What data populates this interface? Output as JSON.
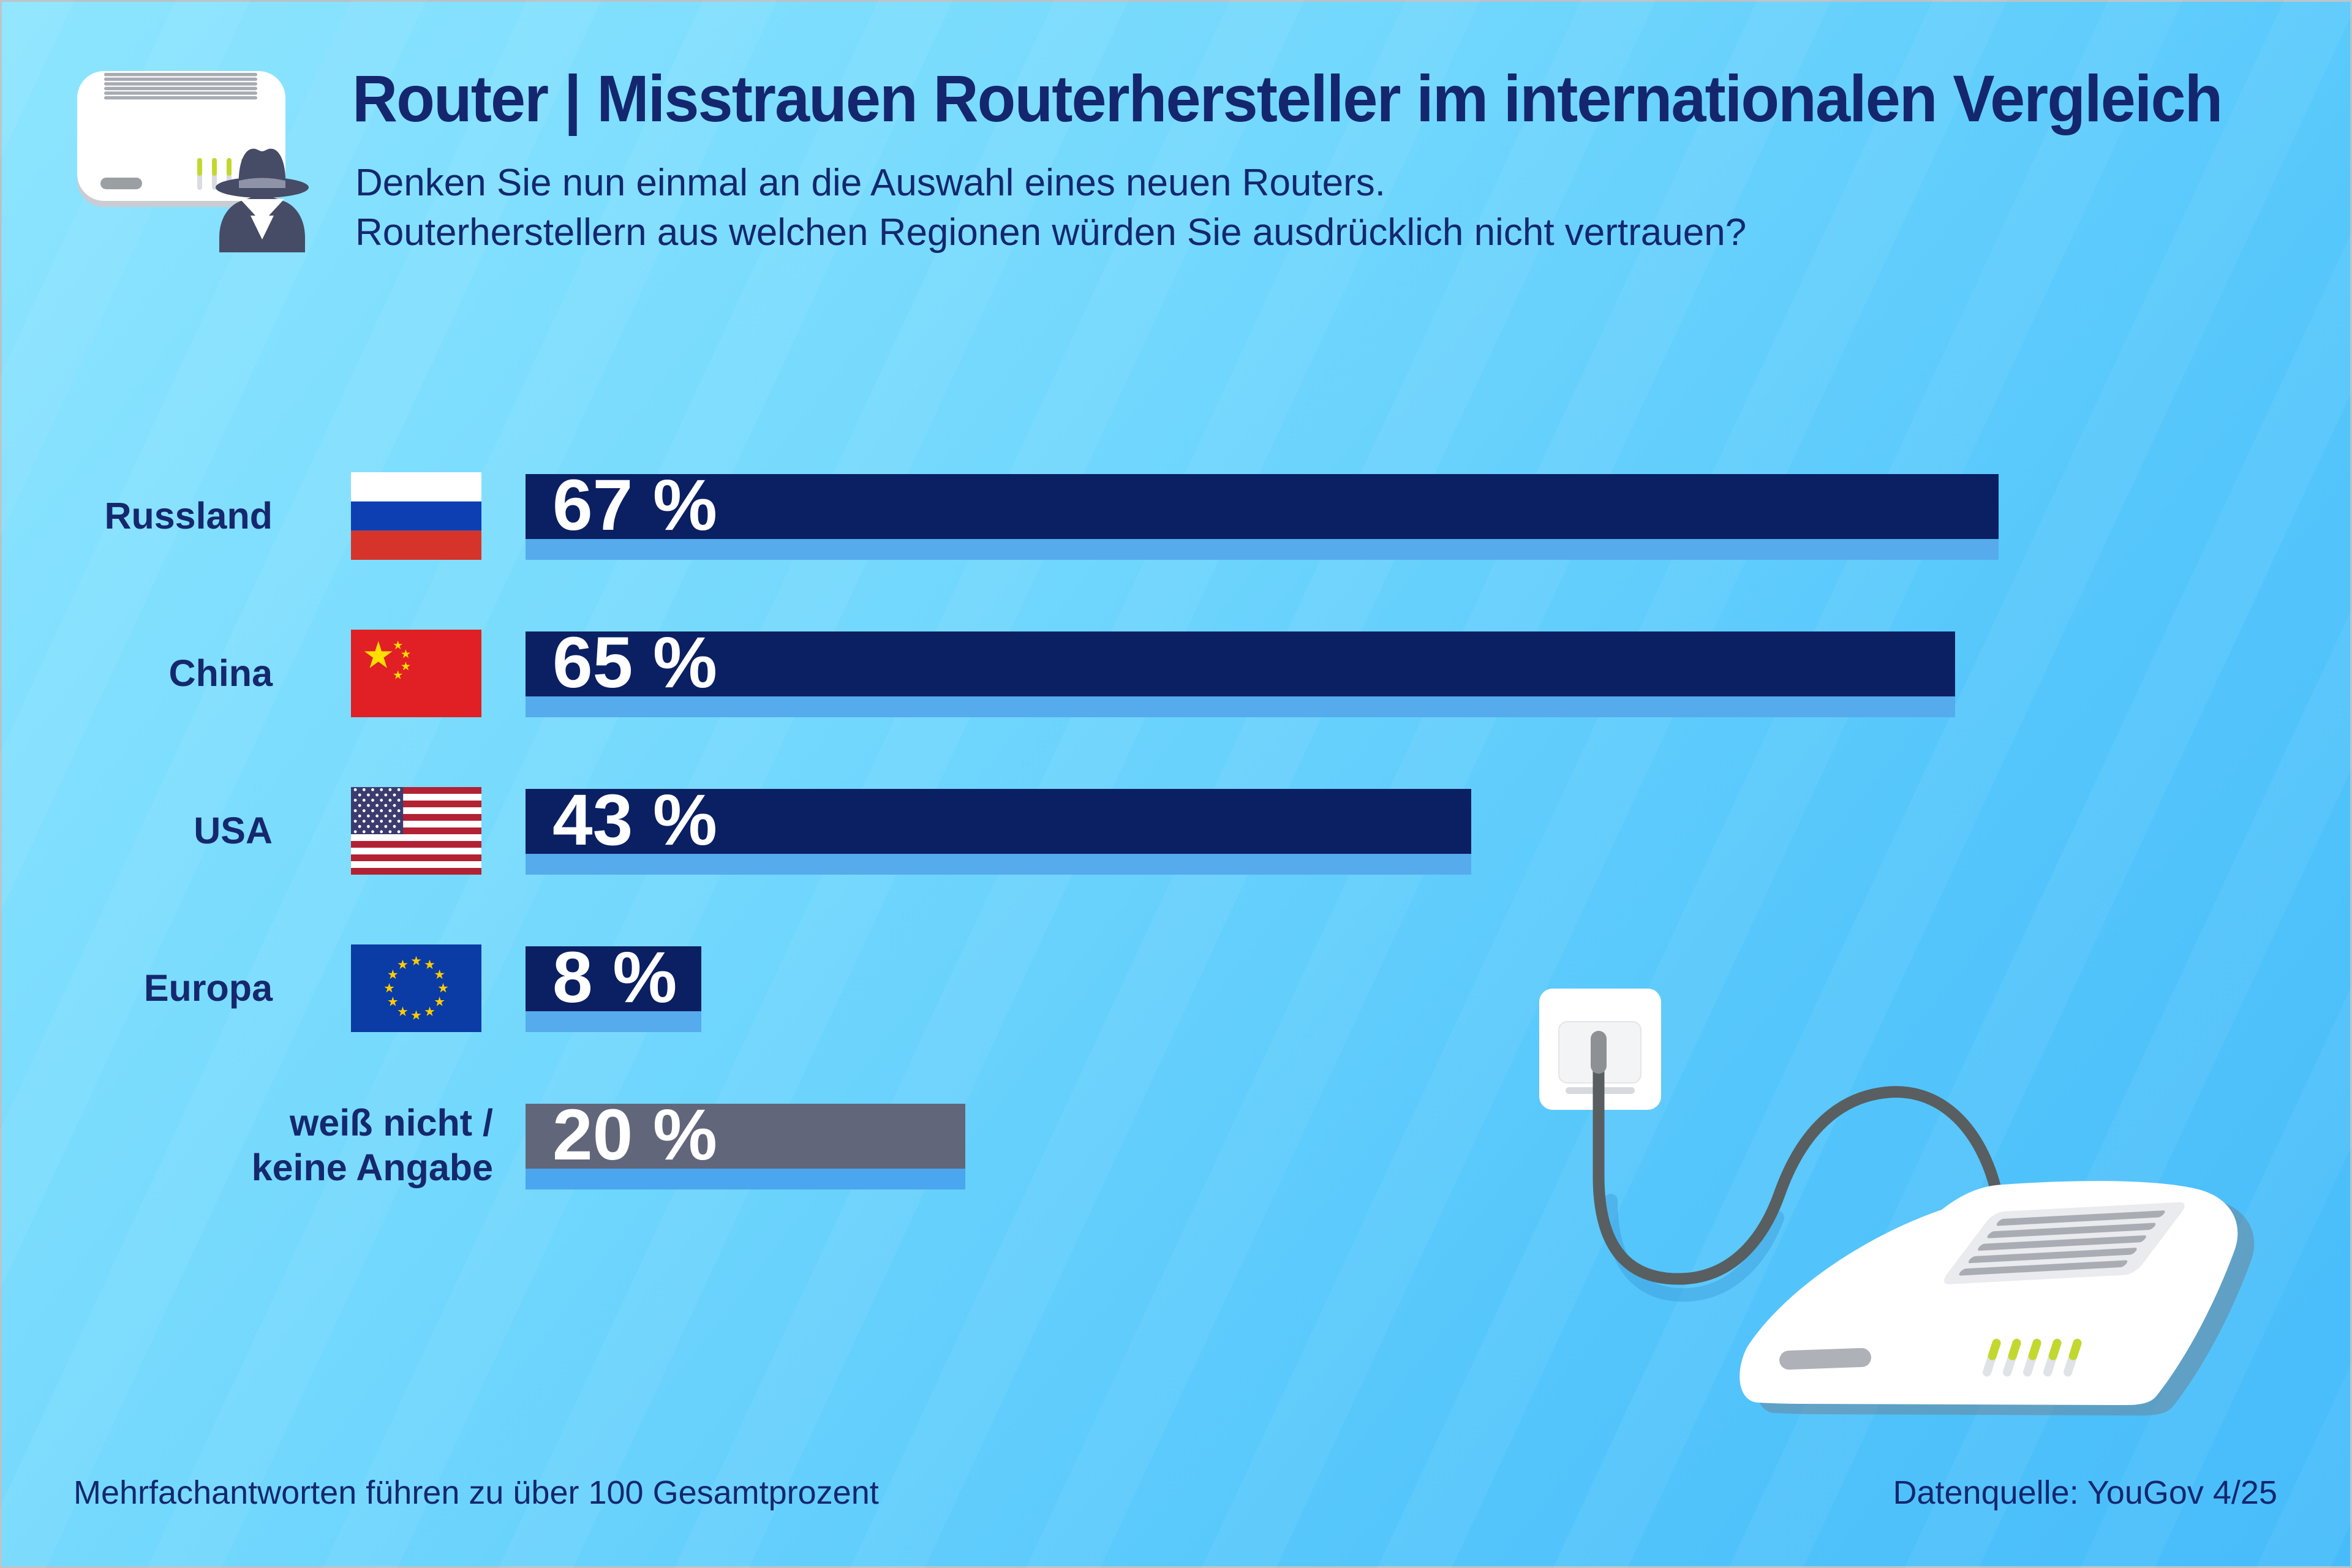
{
  "header": {
    "title": "Router | Misstrauen Routerhersteller im internationalen Vergleich",
    "subtitle_line1": "Denken Sie nun einmal an die Auswahl eines neuen Routers.",
    "subtitle_line2": "Routerherstellern aus welchen Regionen würden Sie ausdrücklich nicht vertrauen?",
    "icon": "router-spy-icon"
  },
  "chart_data": {
    "type": "bar",
    "orientation": "horizontal",
    "title": "Misstrauen Routerhersteller im internationalen Vergleich",
    "unit": "%",
    "xlim": [
      0,
      100
    ],
    "grid": false,
    "legend": false,
    "categories": [
      "Russland",
      "China",
      "USA",
      "Europa",
      "weiß nicht / keine Angabe"
    ],
    "values": [
      67,
      65,
      43,
      8,
      20
    ],
    "bars": [
      {
        "label_lines": [
          "Russland"
        ],
        "value": 67,
        "value_label": "67 %",
        "flag": "russia",
        "bar_color": "#0b1f63",
        "shadow_color": "#56abec"
      },
      {
        "label_lines": [
          "China"
        ],
        "value": 65,
        "value_label": "65 %",
        "flag": "china",
        "bar_color": "#0b1f63",
        "shadow_color": "#56abec"
      },
      {
        "label_lines": [
          "USA"
        ],
        "value": 43,
        "value_label": "43 %",
        "flag": "usa",
        "bar_color": "#0b1f63",
        "shadow_color": "#56abec"
      },
      {
        "label_lines": [
          "Europa"
        ],
        "value": 8,
        "value_label": "8 %",
        "flag": "eu",
        "bar_color": "#0b1f63",
        "shadow_color": "#56abec"
      },
      {
        "label_lines": [
          "weiß nicht /",
          "keine Angabe"
        ],
        "value": 20,
        "value_label": "20 %",
        "flag": null,
        "bar_color": "#62667a",
        "shadow_color": "#4aa6ef"
      }
    ]
  },
  "footer": {
    "note": "Mehrfachantworten führen zu über 100 Gesamtprozent",
    "source": "Datenquelle: YouGov 4/25"
  },
  "colors": {
    "background_start": "#8de5fe",
    "background_end": "#47bcfa",
    "text_navy": "#14276e",
    "bar_navy": "#0b1f63",
    "bar_gray": "#62667a",
    "bar_shadow_blue": "#56abec",
    "value_text": "#ffffff",
    "lime_led": "#c3d82e",
    "cable_gray": "#595e60",
    "spy_body": "#464b66",
    "flags": {
      "russia_blue": "#0d3fb2",
      "russia_red": "#d6342a",
      "china_red": "#e02024",
      "star_yellow": "#ffde00",
      "usa_red": "#b22234",
      "usa_navy": "#3c3b6e",
      "eu_blue": "#0b3ba5",
      "eu_yellow": "#ffcc00"
    }
  }
}
